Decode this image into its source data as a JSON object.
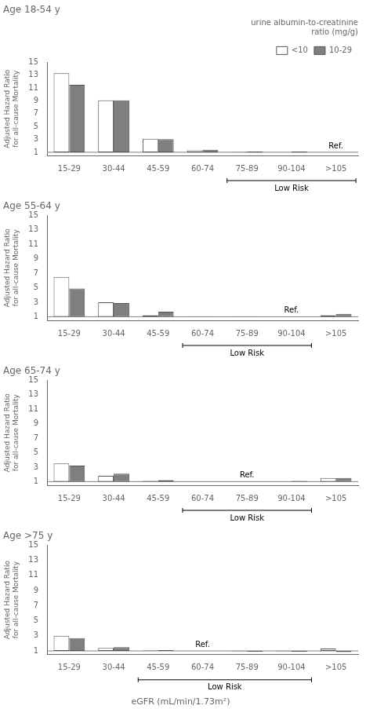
{
  "chart_data": [
    {
      "type": "bar",
      "title": "Age 18-54 y",
      "categories": [
        "15-29",
        "30-44",
        "45-59",
        "60-74",
        "75-89",
        "90-104",
        ">105"
      ],
      "series": [
        {
          "name": "<10",
          "color": "#ffffff",
          "values": [
            13.3,
            9.1,
            3.1,
            1.3,
            1.05,
            1.0,
            null
          ]
        },
        {
          "name": "10-29",
          "color": "#7f7f7f",
          "values": [
            11.5,
            9.1,
            3.05,
            1.4,
            1.1,
            1.1,
            null
          ]
        }
      ],
      "baseline": 1,
      "ylabel": "Adjusted Hazard Ratio\nfor all-cause Mortality",
      "ylim": [
        0.5,
        15
      ],
      "yticks": [
        1,
        3,
        5,
        7,
        9,
        11,
        13,
        15
      ],
      "grid": false,
      "legend": "upper right",
      "legend_title": "urine albumin-to-creatinine\nratio (mg/g)",
      "annotations": [
        {
          "text": "Ref.",
          "category": ">105"
        },
        {
          "text": "Low Risk",
          "from": "75-89",
          "to": ">105"
        }
      ]
    },
    {
      "type": "bar",
      "title": "Age 55-64 y",
      "categories": [
        "15-29",
        "30-44",
        "45-59",
        "60-74",
        "75-89",
        "90-104",
        ">105"
      ],
      "series": [
        {
          "name": "<10",
          "color": "#ffffff",
          "values": [
            6.5,
            3.0,
            1.2,
            0.95,
            0.95,
            null,
            1.2
          ]
        },
        {
          "name": "10-29",
          "color": "#7f7f7f",
          "values": [
            4.9,
            2.9,
            1.7,
            0.95,
            0.95,
            null,
            1.4
          ]
        }
      ],
      "baseline": 1,
      "ylabel": "Adjusted Hazard Ratio\nfor all-cause Mortality",
      "ylim": [
        0.5,
        15
      ],
      "yticks": [
        1,
        3,
        5,
        7,
        9,
        11,
        13,
        15
      ],
      "grid": false,
      "annotations": [
        {
          "text": "Ref.",
          "category": "90-104"
        },
        {
          "text": "Low Risk",
          "from": "60-74",
          "to": "90-104"
        }
      ]
    },
    {
      "type": "bar",
      "title": "Age 65-74 y",
      "categories": [
        "15-29",
        "30-44",
        "45-59",
        "60-74",
        "75-89",
        "90-104",
        ">105"
      ],
      "series": [
        {
          "name": "<10",
          "color": "#ffffff",
          "values": [
            3.5,
            1.8,
            1.1,
            0.95,
            null,
            0.95,
            1.5
          ]
        },
        {
          "name": "10-29",
          "color": "#7f7f7f",
          "values": [
            3.2,
            2.1,
            1.2,
            0.95,
            null,
            1.1,
            1.5
          ]
        }
      ],
      "baseline": 1,
      "ylabel": "Adjusted Hazard Ratio\nfor all-cause Mortality",
      "ylim": [
        0.5,
        15
      ],
      "yticks": [
        1,
        3,
        5,
        7,
        9,
        11,
        13,
        15
      ],
      "grid": false,
      "annotations": [
        {
          "text": "Ref.",
          "category": "75-89"
        },
        {
          "text": "Low Risk",
          "from": "60-74",
          "to": "90-104"
        }
      ]
    },
    {
      "type": "bar",
      "title": "Age >75 y",
      "categories": [
        "15-29",
        "30-44",
        "45-59",
        "60-74",
        "75-89",
        "90-104",
        ">105"
      ],
      "series": [
        {
          "name": "<10",
          "color": "#ffffff",
          "values": [
            3.0,
            1.4,
            1.05,
            null,
            0.95,
            0.95,
            1.3
          ]
        },
        {
          "name": "10-29",
          "color": "#7f7f7f",
          "values": [
            2.7,
            1.5,
            1.1,
            null,
            0.9,
            0.9,
            0.85
          ]
        }
      ],
      "baseline": 1,
      "ylabel": "Adjusted Hazard Ratio\nfor all-cause Mortality",
      "ylim": [
        0.5,
        15
      ],
      "yticks": [
        1,
        3,
        5,
        7,
        9,
        11,
        13,
        15
      ],
      "grid": false,
      "xlabel": "eGFR (mL/min/1.73m²)",
      "annotations": [
        {
          "text": "Ref.",
          "category": "60-74"
        },
        {
          "text": "Low Risk",
          "from": "45-59",
          "to": "90-104"
        }
      ]
    }
  ]
}
